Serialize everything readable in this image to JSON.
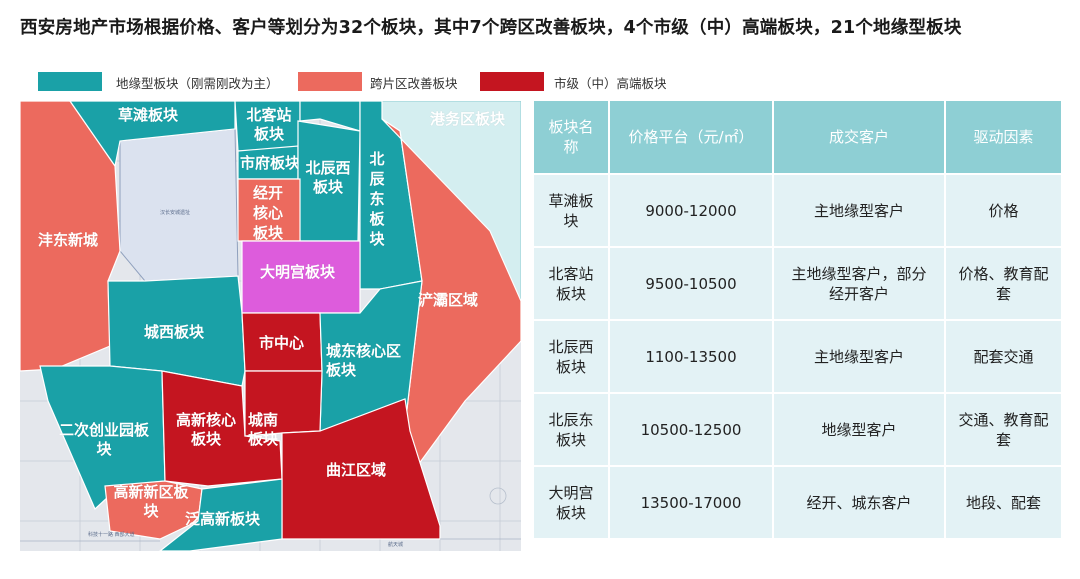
{
  "title": "西安房地产市场根据价格、客户等划分为32个板块，其中7个跨区改善板块，4个市级（中）高端板块，21个地缘型板块",
  "colors": {
    "teal": "#1aa1a7",
    "salmon": "#ec6a5e",
    "red": "#c41520",
    "magenta": "#dd5cdc",
    "light": "#dbe2ef",
    "header": "#8ecfd4",
    "cell": "#e3f2f5"
  },
  "legend": [
    {
      "label": "地缘型板块（刚需刚改为主）",
      "color": "#1aa1a7"
    },
    {
      "label": "跨片区改善板块",
      "color": "#ec6a5e"
    },
    {
      "label": "市级（中）高端板块",
      "color": "#c41520"
    }
  ],
  "map": {
    "regions": {
      "caotan": "草滩板块",
      "beikezhan": "北客站板块",
      "gangwu": "港务区板块",
      "shifu": "市府板块",
      "beichenxi": "北辰西板块",
      "beichendong": "北辰东板块",
      "jingkai": "经开核心板块",
      "fengdong": "沣东新城",
      "daminggong": "大明宫板块",
      "chanba": "浐灞区域",
      "chengxi": "城西板块",
      "shizhongxin": "市中心",
      "chengdong": "城东核心区板块",
      "erci": "二次创业园板块",
      "gaoxinhexin": "高新核心板块",
      "chengnan": "城南板块",
      "qujiang": "曲江区域",
      "gaoxinxin": "高新新区板块",
      "fangao": "泛高新板块"
    },
    "small_texts": {
      "hanchengnan": "汉长安城遗址",
      "bottom_left": "科技十一路  西部大道",
      "bottom_right": "航天城"
    }
  },
  "table": {
    "headers": [
      "板块名称",
      "价格平台（元/㎡）",
      "成交客户",
      "驱动因素"
    ],
    "rows": [
      [
        "草滩板块",
        "9000-12000",
        "主地缘型客户",
        "价格"
      ],
      [
        "北客站板块",
        "9500-10500",
        "主地缘型客户，部分经开客户",
        "价格、教育配套"
      ],
      [
        "北辰西板块",
        "1100-13500",
        "主地缘型客户",
        "配套交通"
      ],
      [
        "北辰东板块",
        "10500-12500",
        "地缘型客户",
        "交通、教育配套"
      ],
      [
        "大明宫板块",
        "13500-17000",
        "经开、城东客户",
        "地段、配套"
      ]
    ]
  }
}
